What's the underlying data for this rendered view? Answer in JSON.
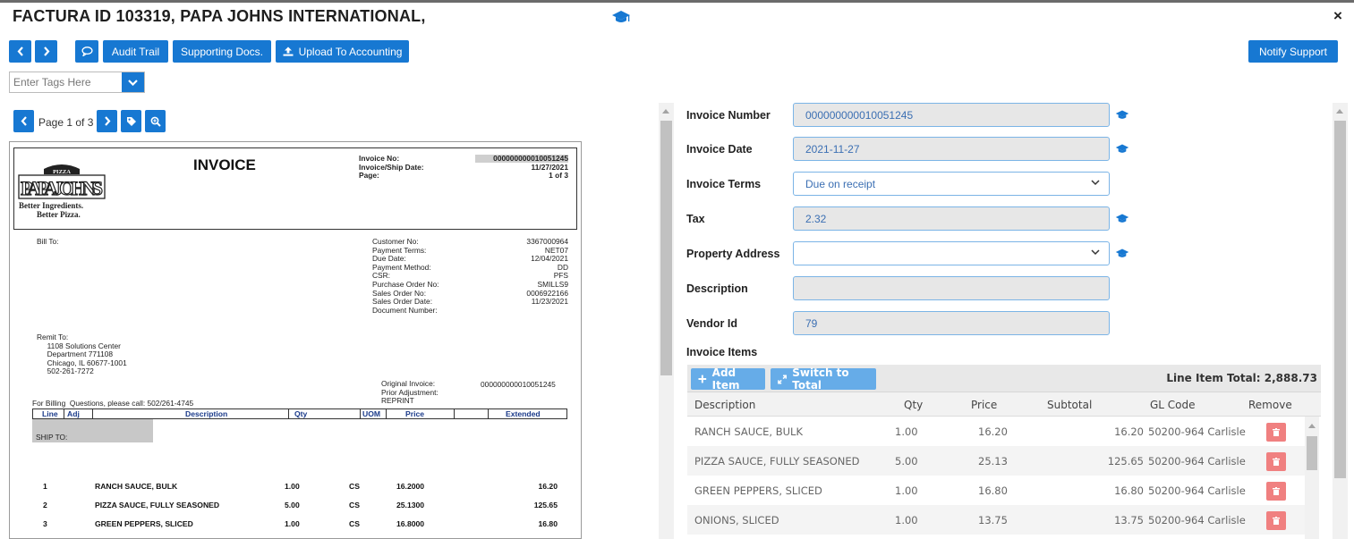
{
  "header": {
    "title": "FACTURA ID 103319, PAPA JOHNS INTERNATIONAL,",
    "close": "×"
  },
  "toolbar": {
    "audit_trail": "Audit Trail",
    "supporting_docs": "Supporting Docs.",
    "upload_accounting": "Upload To Accounting",
    "notify_support": "Notify Support"
  },
  "tags": {
    "placeholder": "Enter Tags Here"
  },
  "pager": {
    "label": "Page 1 of 3"
  },
  "document": {
    "logo_top": "PIZZA",
    "logo_main": "PAPA JOHNS",
    "logo_sub1": "Better Ingredients.",
    "logo_sub2": "Better Pizza.",
    "title": "INVOICE",
    "head_labels": "Invoice No:\nInvoice/Ship Date:\nPage:",
    "head_values": "000000000010051245\n11/27/2021\n1 of 3",
    "bill_to": "Bill To:",
    "cust_labels": "Customer No:\nPayment Terms:\nDue Date:\nPayment Method:\nCSR:\nPurchase Order No:\nSales Order No:\nSales Order Date:\nDocument Number:",
    "cust_values": "3367000964\nNET07\n12/04/2021\nDD\nPFS\nSMILLS9\n0006922166\n11/23/2021",
    "remit_to": "Remit To:\n     1108 Solutions Center\n     Department 771108\n     Chicago, IL 60677-1001\n     502-261-7272",
    "orig_labels": "Original Invoice:\nPrior Adjustment:\nREPRINT",
    "orig_value": "000000000010051245",
    "billing_q": "For Billing  Questions, please call: 502/261-4745",
    "cols": {
      "line": "Line",
      "adj": "Adj",
      "desc": "Description",
      "qty": "Qty",
      "uom": "UOM",
      "price": "Price",
      "ext": "Extended"
    },
    "ship_to": "SHIP TO:",
    "lines": [
      {
        "n": "1",
        "desc": "RANCH SAUCE, BULK",
        "qty": "1.00",
        "uom": "CS",
        "price": "16.2000",
        "ext": "16.20"
      },
      {
        "n": "2",
        "desc": "PIZZA SAUCE, FULLY SEASONED",
        "qty": "5.00",
        "uom": "CS",
        "price": "25.1300",
        "ext": "125.65"
      },
      {
        "n": "3",
        "desc": "GREEN PEPPERS, SLICED",
        "qty": "1.00",
        "uom": "CS",
        "price": "16.8000",
        "ext": "16.80"
      }
    ]
  },
  "form": {
    "invoice_number": {
      "label": "Invoice Number",
      "value": "000000000010051245"
    },
    "invoice_date": {
      "label": "Invoice Date",
      "value": "2021-11-27"
    },
    "invoice_terms": {
      "label": "Invoice Terms",
      "value": "Due on receipt"
    },
    "tax": {
      "label": "Tax",
      "value": "2.32"
    },
    "property_address": {
      "label": "Property Address",
      "value": ""
    },
    "description": {
      "label": "Description",
      "value": ""
    },
    "vendor_id": {
      "label": "Vendor Id",
      "value": "79"
    }
  },
  "items": {
    "title": "Invoice Items",
    "add_item": "Add Item",
    "switch_total": "Switch to Total",
    "line_total": "Line Item Total: 2,888.73",
    "columns": {
      "description": "Description",
      "qty": "Qty",
      "price": "Price",
      "subtotal": "Subtotal",
      "gl_code": "GL Code",
      "remove": "Remove"
    },
    "rows": [
      {
        "description": "RANCH SAUCE, BULK",
        "qty": "1.00",
        "price": "16.20",
        "subtotal": "16.20",
        "gl_code": "50200-964 Carlisle"
      },
      {
        "description": "PIZZA SAUCE, FULLY SEASONED",
        "qty": "5.00",
        "price": "25.13",
        "subtotal": "125.65",
        "gl_code": "50200-964 Carlisle"
      },
      {
        "description": "GREEN PEPPERS, SLICED",
        "qty": "1.00",
        "price": "16.80",
        "subtotal": "16.80",
        "gl_code": "50200-964 Carlisle"
      },
      {
        "description": "ONIONS, SLICED",
        "qty": "1.00",
        "price": "13.75",
        "subtotal": "13.75",
        "gl_code": "50200-964 Carlisle"
      }
    ]
  },
  "colors": {
    "primary": "#1778d2",
    "light_button": "#66ace8",
    "danger": "#f08080",
    "field_border": "#7bb4e6",
    "field_text": "#3b6fb3"
  },
  "icons": [
    "chevron-left-icon",
    "chevron-right-icon",
    "comment-icon",
    "upload-icon",
    "chevron-down-icon",
    "tag-icon",
    "zoom-icon",
    "graduation-cap-icon",
    "plus-icon",
    "switch-icon",
    "trash-icon",
    "close-icon"
  ]
}
